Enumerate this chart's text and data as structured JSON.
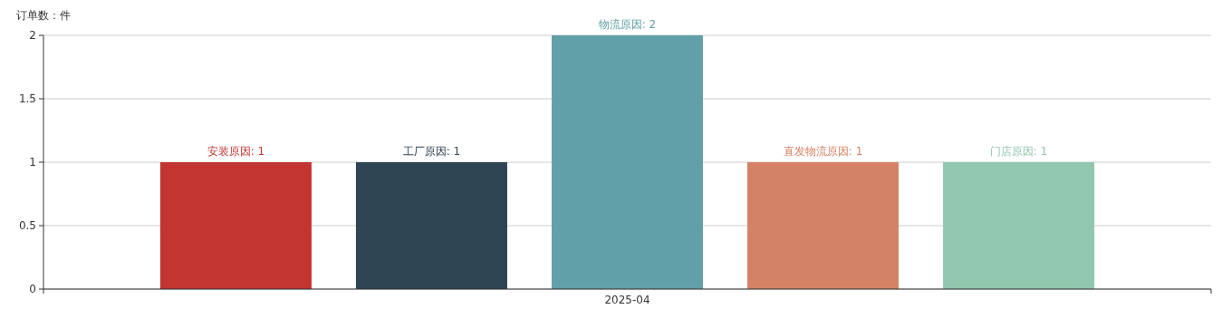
{
  "chart_data": {
    "type": "bar",
    "ylabel": "订单数：件",
    "categories": [
      "2025-04"
    ],
    "series": [
      {
        "color": "#c23531",
        "values": [
          1
        ],
        "value_labels": [
          "安装原因: 1"
        ]
      },
      {
        "color": "#2f4554",
        "values": [
          1
        ],
        "value_labels": [
          "工厂原因: 1"
        ]
      },
      {
        "color": "#61a0a8",
        "values": [
          2
        ],
        "value_labels": [
          "物流原因: 2"
        ]
      },
      {
        "color": "#d48265",
        "values": [
          1
        ],
        "value_labels": [
          "直发物流原因: 1"
        ]
      },
      {
        "color": "#91c7ae",
        "values": [
          1
        ],
        "value_labels": [
          "门店原因: 1"
        ]
      }
    ],
    "ylim": [
      0,
      2
    ],
    "yticks": [
      0,
      0.5,
      1,
      1.5,
      2
    ],
    "grid": "y"
  }
}
